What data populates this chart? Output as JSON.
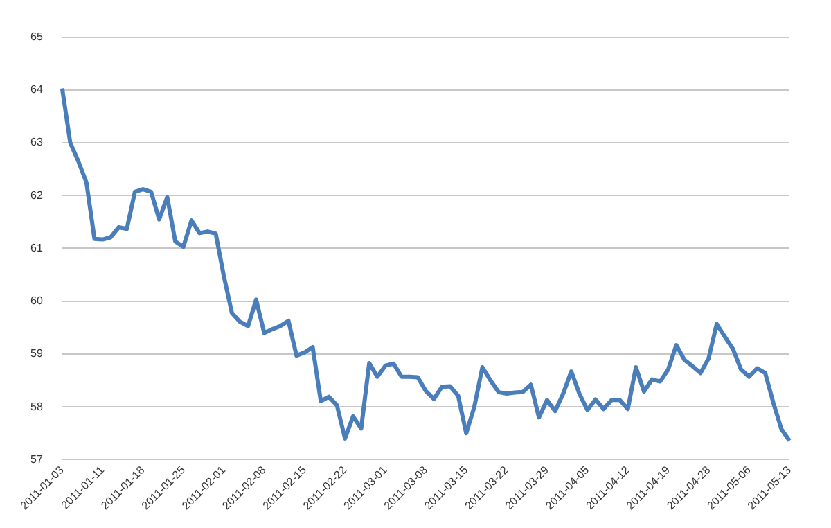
{
  "chart_data": {
    "type": "line",
    "categories": [
      "2011-01-03",
      null,
      null,
      null,
      null,
      "2011-01-11",
      null,
      null,
      null,
      null,
      "2011-01-18",
      null,
      null,
      null,
      null,
      "2011-01-25",
      null,
      null,
      null,
      null,
      "2011-02-01",
      null,
      null,
      null,
      null,
      "2011-02-08",
      null,
      null,
      null,
      null,
      "2011-02-15",
      null,
      null,
      null,
      null,
      "2011-02-22",
      null,
      null,
      null,
      null,
      "2011-03-01",
      null,
      null,
      null,
      null,
      "2011-03-08",
      null,
      null,
      null,
      null,
      "2011-03-15",
      null,
      null,
      null,
      null,
      "2011-03-22",
      null,
      null,
      null,
      null,
      "2011-03-29",
      null,
      null,
      null,
      null,
      "2011-04-05",
      null,
      null,
      null,
      null,
      "2011-04-12",
      null,
      null,
      null,
      null,
      "2011-04-19",
      null,
      null,
      null,
      null,
      "2011-04-28",
      null,
      null,
      null,
      null,
      "2011-05-06",
      null,
      null,
      null,
      null,
      "2011-05-13"
    ],
    "series": [
      {
        "color": "#4a7ebb",
        "values": [
          64.03,
          63.0,
          62.65,
          62.25,
          61.18,
          61.17,
          61.21,
          61.4,
          61.37,
          62.07,
          62.12,
          62.07,
          61.55,
          61.97,
          61.13,
          61.03,
          61.53,
          61.29,
          61.32,
          61.28,
          60.48,
          59.78,
          59.61,
          59.53,
          60.03,
          59.4,
          59.47,
          59.53,
          59.63,
          58.97,
          59.03,
          59.13,
          58.11,
          58.19,
          58.03,
          57.4,
          57.82,
          57.59,
          58.83,
          58.57,
          58.78,
          58.82,
          58.57,
          58.57,
          58.56,
          58.3,
          58.15,
          58.38,
          58.39,
          58.21,
          57.5,
          58.0,
          58.75,
          58.5,
          58.28,
          58.25,
          58.27,
          58.28,
          58.42,
          57.8,
          58.13,
          57.92,
          58.25,
          58.67,
          58.25,
          57.94,
          58.14,
          57.96,
          58.13,
          58.13,
          57.96,
          58.75,
          58.29,
          58.52,
          58.48,
          58.71,
          59.17,
          58.89,
          58.77,
          58.64,
          58.92,
          59.57,
          59.33,
          59.1,
          58.71,
          58.57,
          58.73,
          58.64,
          58.08,
          57.58,
          57.36
        ]
      }
    ],
    "ylim": [
      57,
      65
    ],
    "yticks": [
      57,
      58,
      59,
      60,
      61,
      62,
      63,
      64,
      65
    ],
    "grid": "y",
    "marker": "none",
    "line_style": "solid"
  }
}
